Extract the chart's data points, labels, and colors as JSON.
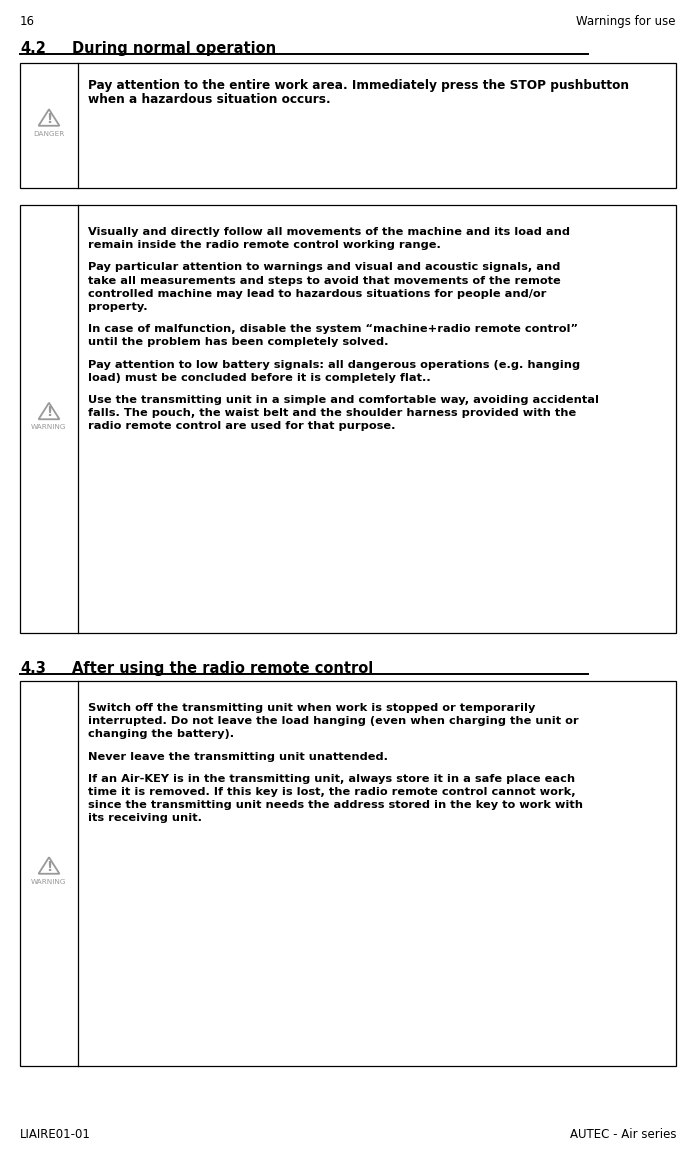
{
  "page_number": "16",
  "page_header_right": "Warnings for use",
  "footer_left": "LIAIRE01-01",
  "footer_right": "AUTEC - Air series",
  "section_42_title": "4.2",
  "section_42_text": "During normal operation",
  "section_43_title": "4.3",
  "section_43_text": "After using the radio remote control",
  "box1_icon_label": "DANGER",
  "box1_lines": [
    "Pay attention to the entire work area. Immediately press the STOP pushbutton",
    "when a hazardous situation occurs."
  ],
  "box2_icon_label": "WARNING",
  "box2_wrapped": [
    [
      "Visually and directly follow all movements of the machine and its load and",
      "remain inside the radio remote control working range."
    ],
    [
      "Pay particular attention to warnings and visual and acoustic signals, and",
      "take all measurements and steps to avoid that movements of the remote",
      "controlled machine may lead to hazardous situations for people and/or",
      "property."
    ],
    [
      "In case of malfunction, disable the system “machine+radio remote control”",
      "until the problem has been completely solved."
    ],
    [
      "Pay attention to low battery signals: all dangerous operations (e.g. hanging",
      "load) must be concluded before it is completely flat.."
    ],
    [
      "Use the transmitting unit in a simple and comfortable way, avoiding accidental",
      "falls. The pouch, the waist belt and the shoulder harness provided with the",
      "radio remote control are used for that purpose."
    ]
  ],
  "box3_icon_label": "WARNING",
  "box3_wrapped": [
    [
      "Switch off the transmitting unit when work is stopped or temporarily",
      "interrupted. Do not leave the load hanging (even when charging the unit or",
      "changing the battery)."
    ],
    [
      "Never leave the transmitting unit unattended."
    ],
    [
      "If an Air-KEY is in the transmitting unit, always store it in a safe place each",
      "time it is removed. If this key is lost, the radio remote control cannot work,",
      "since the transmitting unit needs the address stored in the key to work with",
      "its receiving unit."
    ]
  ],
  "bg_color": "#ffffff",
  "text_color": "#000000",
  "border_color": "#000000",
  "icon_tri_color": "#999999",
  "header_fontsize": 8.5,
  "section_fontsize": 10.5,
  "body_fontsize": 8.2,
  "footer_fontsize": 8.5,
  "body_bold": true
}
